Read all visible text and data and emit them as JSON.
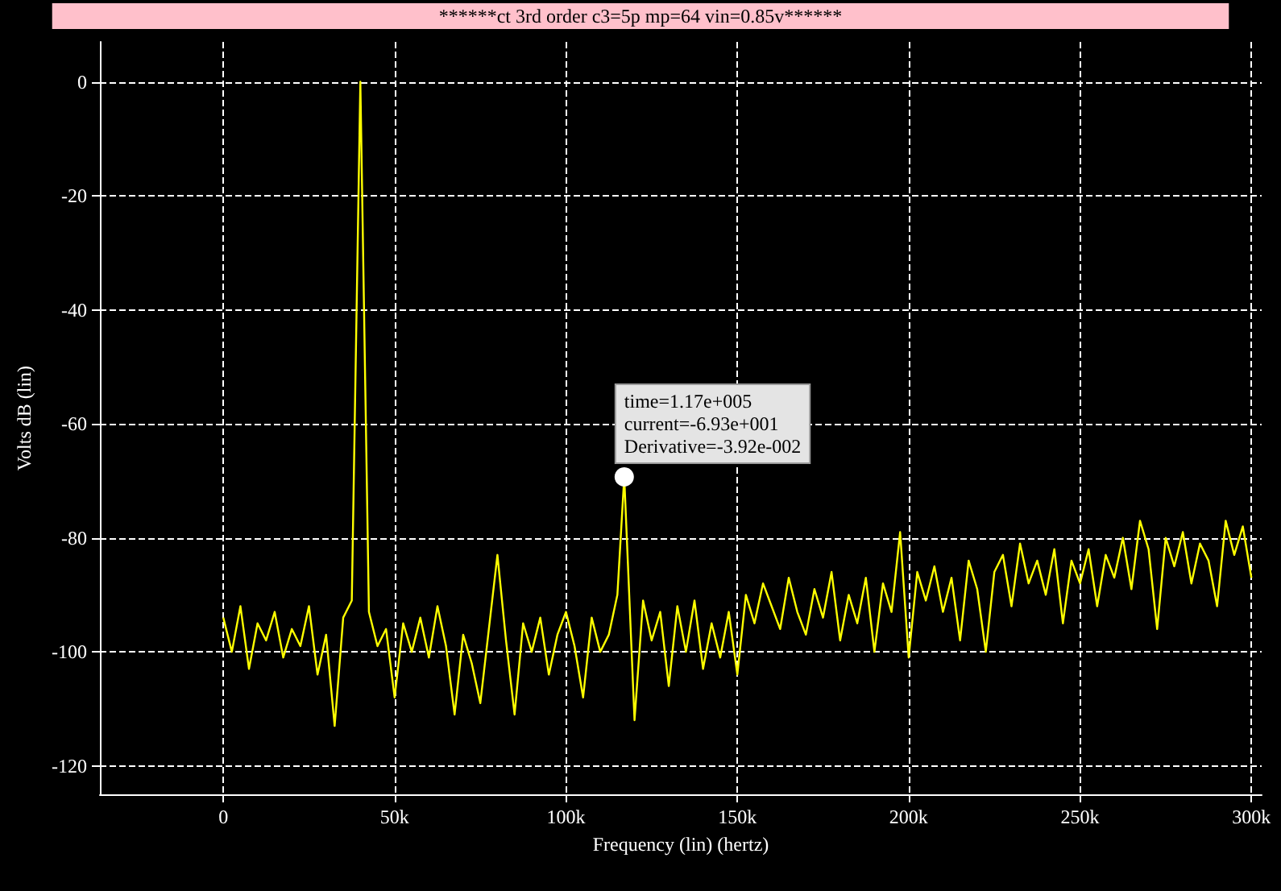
{
  "chart_data": {
    "type": "line",
    "title": "******ct 3rd order c3=5p mp=64 vin=0.85v******",
    "xlabel": "Frequency (lin) (hertz)",
    "ylabel": "Volts dB (lin)",
    "xlim": [
      -36000,
      303000
    ],
    "ylim": [
      -125,
      7
    ],
    "xticks": [
      {
        "value": 0,
        "label": "0"
      },
      {
        "value": 50000,
        "label": "50k"
      },
      {
        "value": 100000,
        "label": "100k"
      },
      {
        "value": 150000,
        "label": "150k"
      },
      {
        "value": 200000,
        "label": "200k"
      },
      {
        "value": 250000,
        "label": "250k"
      },
      {
        "value": 300000,
        "label": "300k"
      }
    ],
    "yticks": [
      -120,
      -100,
      -80,
      -60,
      -40,
      -20,
      0
    ],
    "grid": true,
    "marker": "none",
    "line_style": "solid",
    "annotations": [
      {
        "text": "time=1.17e+005\ncurrent=-6.93e+001\nDerivative=-3.92e-002",
        "x": 117000,
        "y": -69.3
      }
    ],
    "series": [
      {
        "color": "#ffff00",
        "x": [
          0,
          2500,
          5000,
          7500,
          10000,
          12500,
          15000,
          17500,
          20000,
          22500,
          25000,
          27500,
          30000,
          32500,
          35000,
          37500,
          40000,
          42500,
          45000,
          47500,
          50000,
          52500,
          55000,
          57500,
          60000,
          62500,
          65000,
          67500,
          70000,
          72500,
          75000,
          77500,
          80000,
          82500,
          85000,
          87500,
          90000,
          92500,
          95000,
          97500,
          100000,
          102500,
          105000,
          107500,
          110000,
          112500,
          115000,
          117000,
          120000,
          122500,
          125000,
          127500,
          130000,
          132500,
          135000,
          137500,
          140000,
          142500,
          145000,
          147500,
          150000,
          152500,
          155000,
          157500,
          160000,
          162500,
          165000,
          167500,
          170000,
          172500,
          175000,
          177500,
          180000,
          182500,
          185000,
          187500,
          190000,
          192500,
          195000,
          197500,
          200000,
          202500,
          205000,
          207500,
          210000,
          212500,
          215000,
          217500,
          220000,
          222500,
          225000,
          227500,
          230000,
          232500,
          235000,
          237500,
          240000,
          242500,
          245000,
          247500,
          250000,
          252500,
          255000,
          257500,
          260000,
          262500,
          265000,
          267500,
          270000,
          272500,
          275000,
          277500,
          280000,
          282500,
          285000,
          287500,
          290000,
          292500,
          295000,
          297500,
          300000
        ],
        "values": [
          -94,
          -100,
          -92,
          -103,
          -95,
          -98,
          -93,
          -101,
          -96,
          -99,
          -92,
          -104,
          -97,
          -113,
          -94,
          -91,
          0,
          -93,
          -99,
          -96,
          -108,
          -95,
          -100,
          -94,
          -101,
          -92,
          -99,
          -111,
          -97,
          -102,
          -109,
          -96,
          -83,
          -98,
          -111,
          -95,
          -100,
          -94,
          -104,
          -97,
          -93,
          -99,
          -108,
          -94,
          -100,
          -97,
          -90,
          -69.3,
          -112,
          -91,
          -98,
          -93,
          -106,
          -92,
          -100,
          -91,
          -103,
          -95,
          -101,
          -93,
          -104,
          -90,
          -95,
          -88,
          -92,
          -96,
          -87,
          -93,
          -97,
          -89,
          -94,
          -86,
          -98,
          -90,
          -95,
          -87,
          -100,
          -88,
          -93,
          -79,
          -101,
          -86,
          -91,
          -85,
          -93,
          -87,
          -98,
          -84,
          -89,
          -100,
          -86,
          -83,
          -92,
          -81,
          -88,
          -84,
          -90,
          -82,
          -95,
          -84,
          -88,
          -82,
          -92,
          -83,
          -87,
          -80,
          -89,
          -77,
          -82,
          -96,
          -80,
          -85,
          -79,
          -88,
          -81,
          -84,
          -92,
          -77,
          -83,
          -78,
          -87
        ]
      }
    ]
  }
}
